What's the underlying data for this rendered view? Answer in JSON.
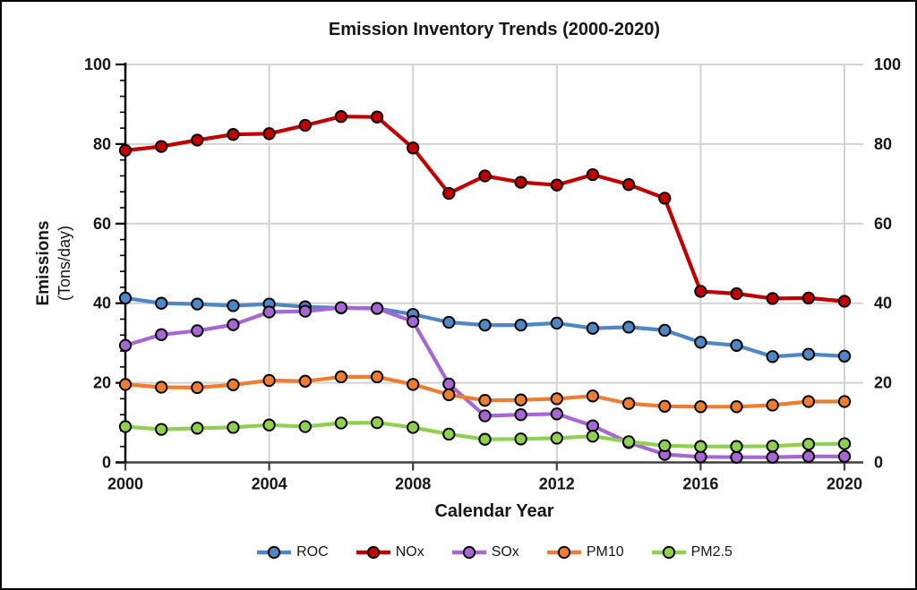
{
  "chart_data": {
    "type": "line",
    "title": "Emission Inventory Trends (2000-2020)",
    "xlabel": "Calendar Year",
    "ylabel": "Emissions",
    "ylabel_units": "(Tons/day)",
    "x": [
      2000,
      2001,
      2002,
      2003,
      2004,
      2005,
      2006,
      2007,
      2008,
      2009,
      2010,
      2011,
      2012,
      2013,
      2014,
      2015,
      2016,
      2017,
      2018,
      2019,
      2020
    ],
    "series": [
      {
        "name": "ROC",
        "color": "#4F86C4",
        "values": [
          41.3,
          40.0,
          39.8,
          39.4,
          39.8,
          39.1,
          38.8,
          38.7,
          37.2,
          35.2,
          34.5,
          34.5,
          35.0,
          33.7,
          34.0,
          33.2,
          30.2,
          29.4,
          26.6,
          27.2,
          26.7
        ]
      },
      {
        "name": "NOx",
        "color": "#C00000",
        "values": [
          78.4,
          79.4,
          81.0,
          82.4,
          82.6,
          84.7,
          86.9,
          86.8,
          79.0,
          67.6,
          72.0,
          70.4,
          69.7,
          72.3,
          69.8,
          66.4,
          43.0,
          42.4,
          41.2,
          41.3,
          40.5
        ]
      },
      {
        "name": "SOx",
        "color": "#A667D2",
        "values": [
          29.4,
          32.1,
          33.1,
          34.6,
          37.8,
          38.0,
          38.9,
          38.7,
          35.4,
          19.7,
          11.7,
          12.0,
          12.2,
          9.2,
          5.0,
          2.0,
          1.4,
          1.3,
          1.3,
          1.5,
          1.5
        ]
      },
      {
        "name": "PM10",
        "color": "#ED7D31",
        "values": [
          19.6,
          18.9,
          18.8,
          19.5,
          20.6,
          20.4,
          21.5,
          21.5,
          19.6,
          17.0,
          15.6,
          15.7,
          16.0,
          16.7,
          14.8,
          14.1,
          14.0,
          14.0,
          14.4,
          15.3,
          15.3
        ]
      },
      {
        "name": "PM2.5",
        "color": "#8FD050",
        "values": [
          9.0,
          8.3,
          8.6,
          8.8,
          9.4,
          9.0,
          9.9,
          10.0,
          8.8,
          7.1,
          5.8,
          5.9,
          6.1,
          6.6,
          5.2,
          4.2,
          4.0,
          4.0,
          4.1,
          4.6,
          4.7
        ]
      }
    ],
    "ylim": [
      0,
      100
    ],
    "y_ticks": [
      0,
      20,
      40,
      60,
      80,
      100
    ],
    "y_minor_step": 4,
    "x_ticks": [
      2000,
      2004,
      2008,
      2012,
      2016,
      2020
    ],
    "grid": true,
    "right_axis_labels": [
      100,
      80,
      60,
      40,
      20,
      0
    ],
    "legend_position": "bottom",
    "colors": {
      "gridline": "#D2D2D2",
      "x_axis": "#404040",
      "y_axis": "#000000",
      "marker_outline": "#000000"
    }
  }
}
